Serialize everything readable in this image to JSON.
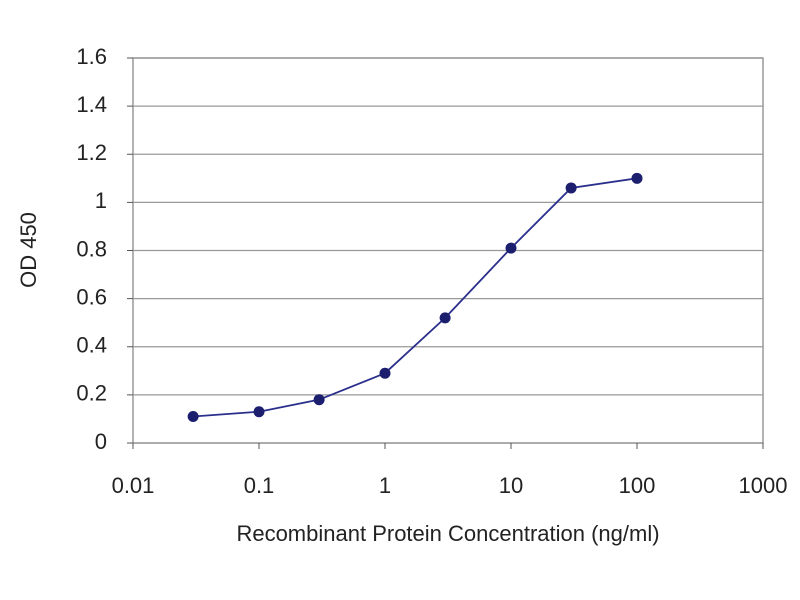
{
  "chart_data": {
    "type": "line",
    "x_label": "Recombinant Protein Concentration (ng/ml)",
    "y_label": "OD 450",
    "x": [
      0.03,
      0.1,
      0.3,
      1,
      3,
      10,
      30,
      100
    ],
    "series": [
      {
        "color": "#2b2f8c",
        "values": [
          0.11,
          0.13,
          0.18,
          0.29,
          0.52,
          0.81,
          1.06,
          1.1
        ]
      }
    ],
    "xlim": [
      0.01,
      1000
    ],
    "xticks": [
      0.01,
      0.1,
      1,
      10,
      100,
      1000
    ],
    "log_x": true,
    "ylim": [
      0,
      1.6
    ],
    "yticks": [
      0,
      0.2,
      0.4,
      0.6,
      0.8,
      1,
      1.2,
      1.4,
      1.6
    ],
    "grid": true
  }
}
